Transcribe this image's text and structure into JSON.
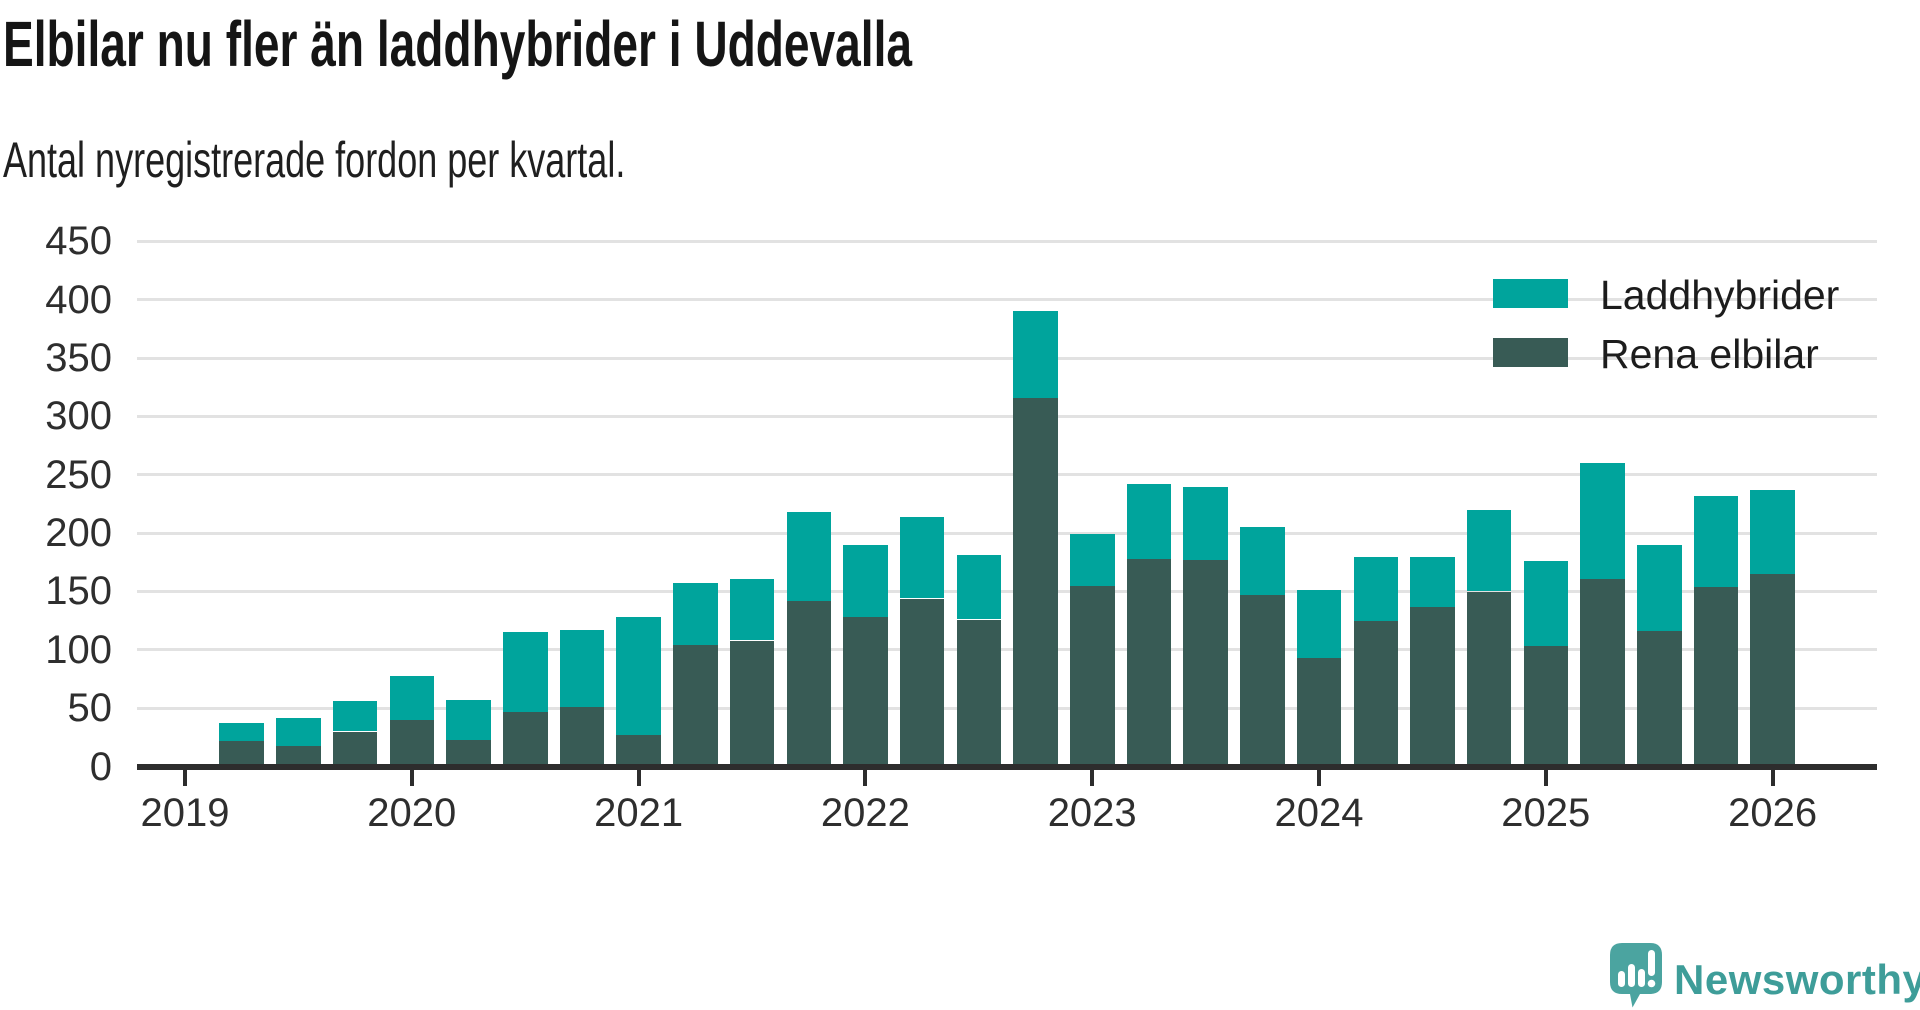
{
  "title": "Elbilar nu fler än laddhybrider i Uddevalla",
  "subtitle": "Antal nyregistrerade fordon per kvartal.",
  "logo": {
    "text": "Newsworthy",
    "icon": "newsworthy-speech-bubble-bar-chart-icon",
    "icon_color": "#4ba4a0",
    "text_color": "#3e9d99"
  },
  "colors": {
    "laddhybrider": "#00a49c",
    "rena_elbilar": "#385b55",
    "axis": "#2d2d2d",
    "gridline": "#e2e2e2",
    "background": "#ffffff",
    "text": "#151515"
  },
  "chart_data": {
    "type": "bar",
    "stacked": true,
    "title": "Elbilar nu fler än laddhybrider i Uddevalla",
    "subtitle": "Antal nyregistrerade fordon per kvartal.",
    "xlabel": "",
    "ylabel": "",
    "ylim": [
      0,
      450
    ],
    "y_ticks": [
      0,
      50,
      100,
      150,
      200,
      250,
      300,
      350,
      400,
      450
    ],
    "grid": "horizontal",
    "legend_position": "top-right",
    "x_year_ticks": [
      "2019",
      "2020",
      "2021",
      "2022",
      "2023",
      "2024",
      "2025",
      "2026"
    ],
    "categories": [
      "2019 Q2",
      "2019 Q3",
      "2019 Q4",
      "2020 Q1",
      "2020 Q2",
      "2020 Q3",
      "2020 Q4",
      "2021 Q1",
      "2021 Q2",
      "2021 Q3",
      "2021 Q4",
      "2022 Q1",
      "2022 Q2",
      "2022 Q3",
      "2022 Q4",
      "2023 Q1",
      "2023 Q2",
      "2023 Q3",
      "2023 Q4",
      "2024 Q1",
      "2024 Q2",
      "2024 Q3",
      "2024 Q4",
      "2025 Q1",
      "2025 Q2",
      "2025 Q3",
      "2025 Q4",
      "2026 Q1"
    ],
    "series": [
      {
        "name": "Laddhybrider",
        "color": "#00a49c",
        "values": [
          15,
          24,
          26,
          38,
          34,
          68,
          66,
          101,
          53,
          53,
          76,
          62,
          70,
          55,
          74,
          44,
          64,
          63,
          58,
          58,
          55,
          43,
          70,
          73,
          99,
          74,
          78,
          72
        ]
      },
      {
        "name": "Rena elbilar",
        "color": "#385b55",
        "values": [
          22,
          18,
          30,
          40,
          23,
          47,
          51,
          27,
          104,
          108,
          142,
          128,
          144,
          126,
          316,
          155,
          178,
          177,
          147,
          93,
          125,
          137,
          150,
          103,
          161,
          116,
          154,
          165
        ]
      }
    ],
    "stack_order_bottom_to_top": [
      "Rena elbilar",
      "Laddhybrider"
    ]
  }
}
